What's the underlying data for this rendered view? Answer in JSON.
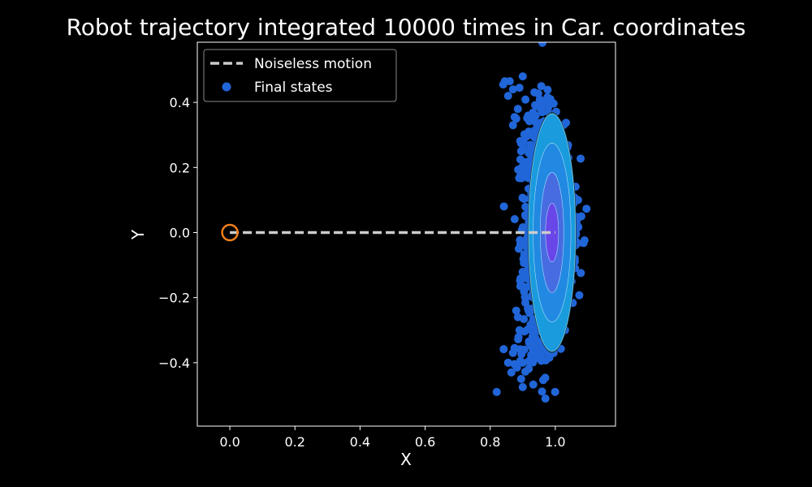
{
  "chart_data": {
    "type": "scatter",
    "title": "Robot trajectory integrated 10000 times in Car. coordinates",
    "xlabel": "X",
    "ylabel": "Y",
    "xlim": [
      -0.1,
      1.185
    ],
    "ylim": [
      -0.595,
      0.585
    ],
    "xticks": [
      0.0,
      0.2,
      0.4,
      0.6,
      0.8,
      1.0
    ],
    "xtick_labels": [
      "0.0",
      "0.2",
      "0.4",
      "0.6",
      "0.8",
      "1.0"
    ],
    "yticks": [
      -0.4,
      -0.2,
      0.0,
      0.2,
      0.4
    ],
    "ytick_labels": [
      "−0.4",
      "−0.2",
      "0.0",
      "0.2",
      "0.4"
    ],
    "grid": false,
    "legend_position": "top-left",
    "series": [
      {
        "name": "Noiseless motion",
        "kind": "line",
        "style": "dashed",
        "color": "#cccccc",
        "x": [
          0.0,
          1.0
        ],
        "y": [
          0.0,
          0.0
        ]
      },
      {
        "name": "Final states",
        "kind": "scatter",
        "color": "#2166d8",
        "x": [
          0.82,
          0.84,
          0.845,
          0.855,
          0.86,
          0.87,
          0.875,
          0.88,
          0.89,
          0.9,
          0.985,
          0.995,
          1.08,
          1.065,
          1.06,
          0.855,
          0.865,
          0.87,
          0.875,
          0.88,
          0.885,
          0.89,
          0.895,
          0.9,
          0.9,
          0.905,
          0.885,
          0.87,
          0.99,
          0.995,
          1.03,
          1.07,
          1.05,
          0.94,
          0.955,
          0.96,
          0.98,
          0.91,
          0.895,
          0.92,
          0.93
        ],
        "y": [
          -0.49,
          0.455,
          0.465,
          0.42,
          0.465,
          0.44,
          0.355,
          0.35,
          0.445,
          0.48,
          0.41,
          0.34,
          0.05,
          0.02,
          -0.08,
          -0.4,
          -0.43,
          -0.37,
          -0.355,
          -0.24,
          -0.26,
          -0.3,
          -0.45,
          -0.475,
          -0.4,
          -0.36,
          0.38,
          0.33,
          -0.35,
          -0.37,
          -0.3,
          0.1,
          -0.15,
          0.39,
          0.38,
          0.37,
          -0.37,
          0.3,
          0.25,
          -0.34,
          -0.32
        ]
      },
      {
        "name": "start",
        "kind": "marker",
        "color": "#f07f1a",
        "x": [
          0.0
        ],
        "y": [
          0.0
        ]
      }
    ],
    "point_cloud": {
      "color": "#2166d8",
      "center": [
        0.985,
        0.0
      ],
      "spread_x": 0.035,
      "spread_y": 0.17,
      "count": 1500
    },
    "uncertainty_ellipses": {
      "center": [
        0.99,
        0.0
      ],
      "radii": [
        {
          "rx": 0.075,
          "ry": 0.37,
          "color": "#0f3f4d"
        },
        {
          "rx": 0.072,
          "ry": 0.365,
          "color": "#1aa0e6"
        },
        {
          "rx": 0.058,
          "ry": 0.275,
          "color": "#2288e0"
        },
        {
          "rx": 0.036,
          "ry": 0.185,
          "color": "#4a6ae0"
        },
        {
          "rx": 0.02,
          "ry": 0.09,
          "color": "#6a45e8"
        }
      ]
    }
  }
}
